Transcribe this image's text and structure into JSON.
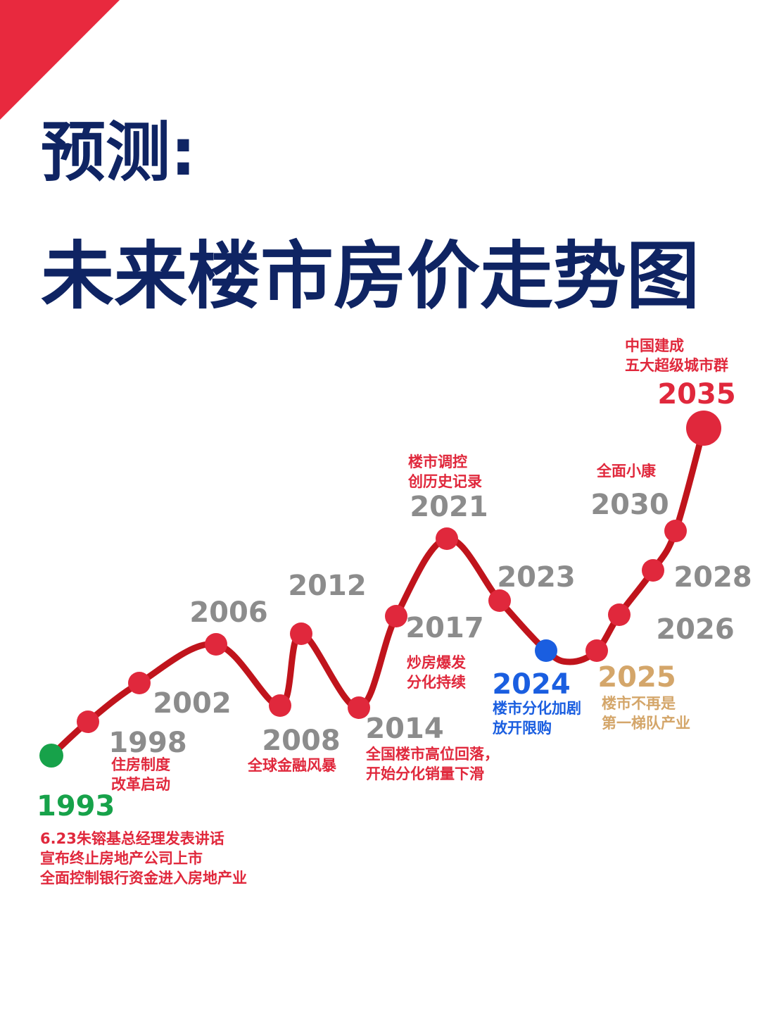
{
  "title": [
    "预测:",
    "未来楼市房价走势图"
  ],
  "nodes": [
    {
      "year": "1993",
      "note": [
        "6.23朱镕基总经理发表讲话",
        "宣布终止房地产公司上市",
        "全面控制银行资金进入房地产业"
      ]
    },
    {
      "year": "1998",
      "note": [
        "住房制度",
        "改革启动"
      ]
    },
    {
      "year": "2002",
      "note": []
    },
    {
      "year": "2006",
      "note": []
    },
    {
      "year": "2008",
      "note": [
        "全球金融风暴"
      ]
    },
    {
      "year": "2012",
      "note": []
    },
    {
      "year": "2014",
      "note": [
        "全国楼市高位回落，",
        "开始分化销量下滑"
      ]
    },
    {
      "year": "2017",
      "note": [
        "炒房爆发",
        "分化持续"
      ]
    },
    {
      "year": "2021",
      "note": [
        "楼市调控",
        "创历史记录"
      ]
    },
    {
      "year": "2023",
      "note": []
    },
    {
      "year": "2024",
      "note": [
        "楼市分化加剧",
        "放开限购"
      ]
    },
    {
      "year": "2025",
      "note": [
        "楼市不再是",
        "第一梯队产业"
      ]
    },
    {
      "year": "2026",
      "note": []
    },
    {
      "year": "2028",
      "note": []
    },
    {
      "year": "2030",
      "note": [
        "全面小康"
      ]
    },
    {
      "year": "2035",
      "note": [
        "中国建成",
        "五大超级城市群"
      ]
    }
  ]
}
